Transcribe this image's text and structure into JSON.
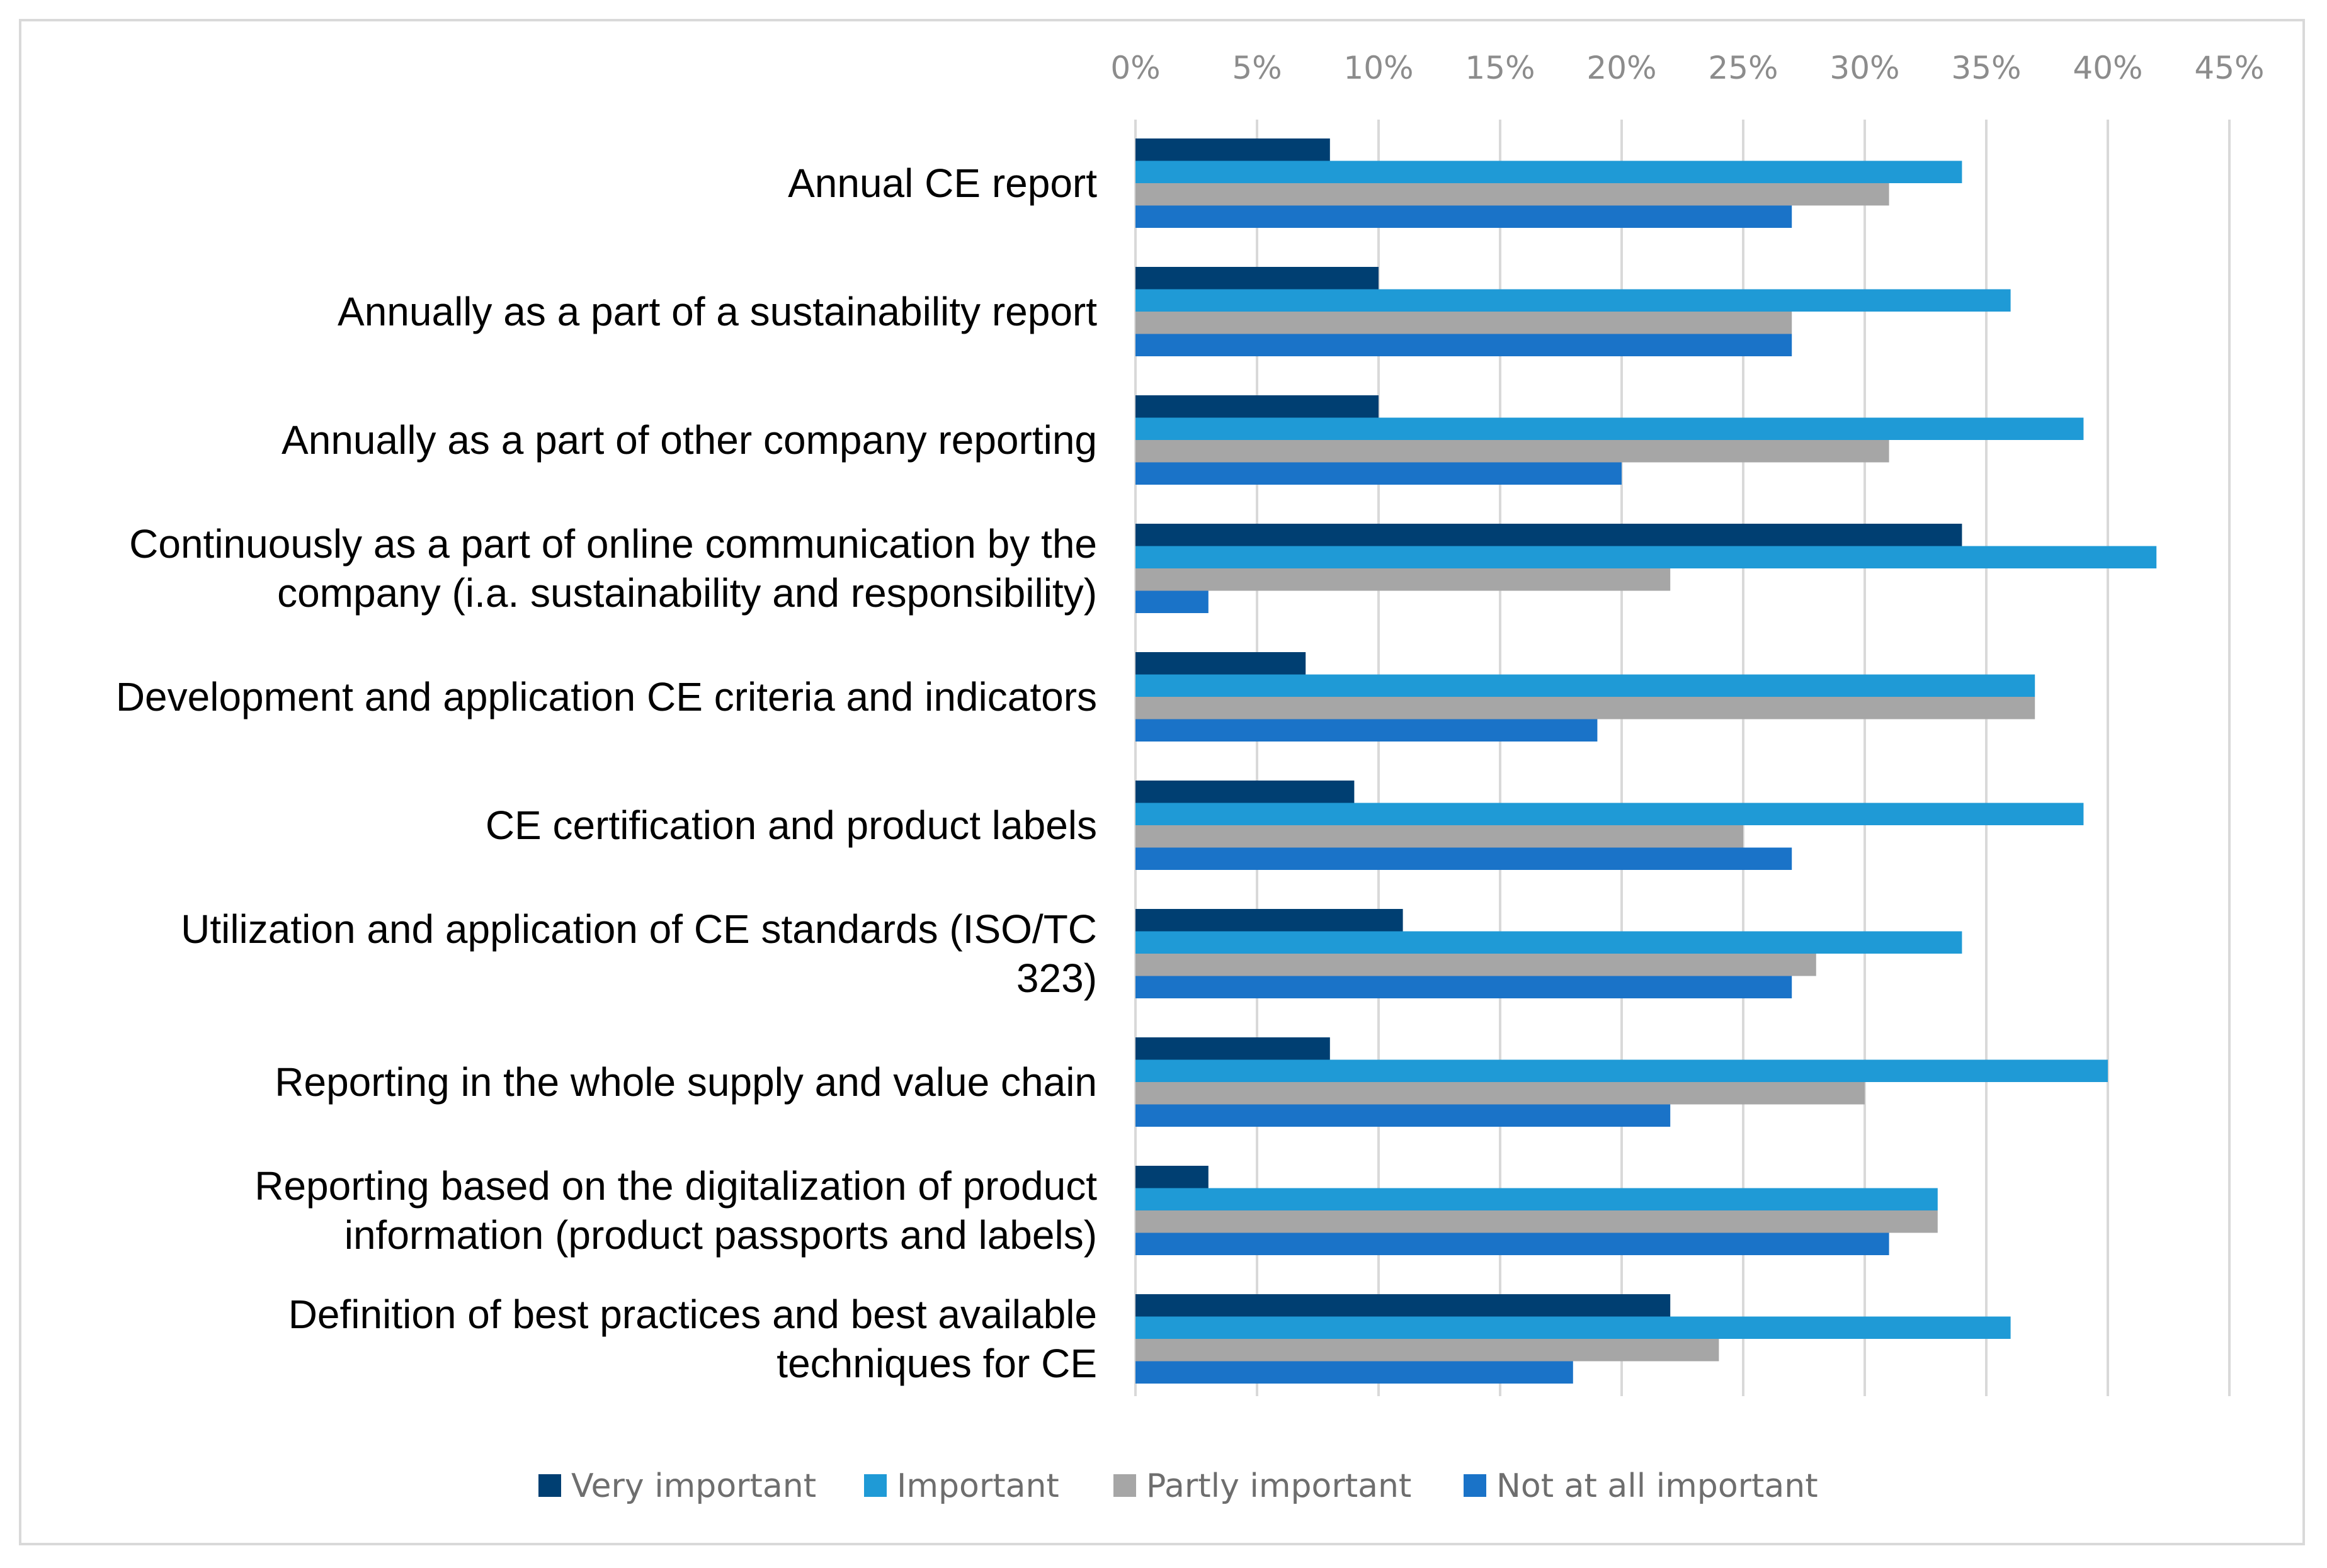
{
  "chart_data": {
    "type": "bar",
    "orientation": "horizontal",
    "title": "",
    "xlabel": "",
    "ylabel": "",
    "xlim": [
      0,
      45
    ],
    "x_ticks": [
      "0%",
      "5%",
      "10%",
      "15%",
      "20%",
      "25%",
      "30%",
      "35%",
      "40%",
      "45%"
    ],
    "x_tick_values": [
      0,
      5,
      10,
      15,
      20,
      25,
      30,
      35,
      40,
      45
    ],
    "x_axis_position": "top",
    "grid": true,
    "legend_position": "bottom",
    "categories": [
      [
        "Annual CE report"
      ],
      [
        "Annually as a part of a sustainability report"
      ],
      [
        "Annually as a part of other company reporting"
      ],
      [
        "Continuously as a part of online communication by the",
        "company (i.a. sustainability and responsibility)"
      ],
      [
        "Development and application CE criteria and indicators"
      ],
      [
        "CE certification and product labels"
      ],
      [
        "Utilization and application of CE standards (ISO/TC",
        "323)"
      ],
      [
        "Reporting in the whole supply and value chain"
      ],
      [
        "Reporting based on the digitalization of product",
        "information (product passports and labels)"
      ],
      [
        "Definition of best practices and best available",
        "techniques for CE"
      ]
    ],
    "series": [
      {
        "name": "Very important",
        "color": "#003f72",
        "values": [
          8,
          10,
          10,
          34,
          7,
          9,
          11,
          8,
          3,
          22
        ]
      },
      {
        "name": "Important",
        "color": "#1f9ad6",
        "values": [
          34,
          36,
          39,
          42,
          37,
          39,
          34,
          40,
          33,
          36
        ]
      },
      {
        "name": "Partly important",
        "color": "#a6a6a6",
        "values": [
          31,
          27,
          31,
          22,
          37,
          25,
          28,
          30,
          33,
          24
        ]
      },
      {
        "name": "Not at all important",
        "color": "#1a73c8",
        "values": [
          27,
          27,
          20,
          3,
          19,
          27,
          27,
          22,
          31,
          18
        ]
      }
    ]
  }
}
